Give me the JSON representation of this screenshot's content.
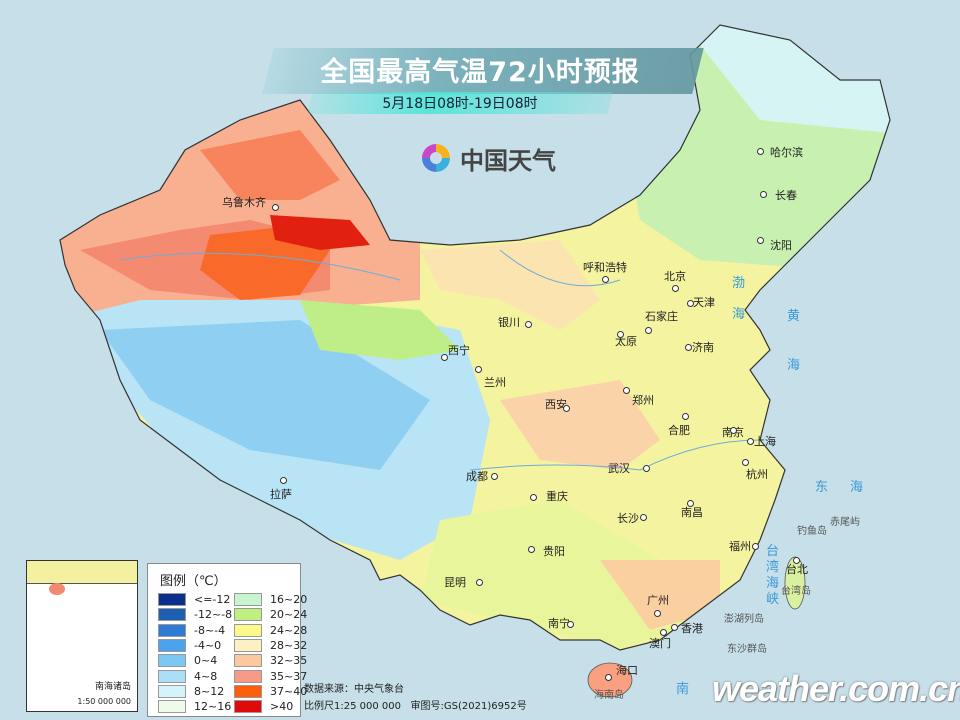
{
  "header": {
    "title": "全国最高气温72小时预报",
    "subtitle": "5月18日08时-19日08时",
    "logo_text": "中国天气"
  },
  "legend": {
    "title": "图例（℃）",
    "items": [
      {
        "label": "<=-12",
        "color": "#0b2f8a"
      },
      {
        "label": "-12~-8",
        "color": "#1d5fb0"
      },
      {
        "label": "-8~-4",
        "color": "#2e7ad4"
      },
      {
        "label": "-4~0",
        "color": "#4aa3ec"
      },
      {
        "label": "0~4",
        "color": "#7cc8f5"
      },
      {
        "label": "4~8",
        "color": "#aadff7"
      },
      {
        "label": "8~12",
        "color": "#d4f4fb"
      },
      {
        "label": "12~16",
        "color": "#eefbea"
      },
      {
        "label": "16~20",
        "color": "#c8f5cf"
      },
      {
        "label": "20~24",
        "color": "#bff07f"
      },
      {
        "label": "24~28",
        "color": "#fbf98a"
      },
      {
        "label": "28~32",
        "color": "#fdf0c2"
      },
      {
        "label": "32~35",
        "color": "#fcc8a0"
      },
      {
        "label": "35~37",
        "color": "#f89a88"
      },
      {
        "label": "37~40",
        "color": "#fb5f0c"
      },
      {
        "label": ">40",
        "color": "#e10a0a"
      }
    ]
  },
  "cities": [
    "乌鲁木齐",
    "哈尔滨",
    "长春",
    "沈阳",
    "呼和浩特",
    "北京",
    "天津",
    "石家庄",
    "银川",
    "太原",
    "济南",
    "西宁",
    "兰州",
    "西安",
    "郑州",
    "合肥",
    "南京",
    "上海",
    "杭州",
    "拉萨",
    "成都",
    "重庆",
    "武汉",
    "长沙",
    "南昌",
    "贵阳",
    "福州",
    "台北",
    "昆明",
    "南宁",
    "广州",
    "香港",
    "澳门",
    "海口"
  ],
  "seas": [
    "渤",
    "海",
    "黄",
    "海",
    "东",
    "海",
    "南",
    "台",
    "湾",
    "海",
    "峡"
  ],
  "islands": [
    "钓鱼岛",
    "赤尾屿",
    "台湾岛",
    "澎湖列岛",
    "东沙群岛",
    "海南岛"
  ],
  "inset": {
    "label": "南海诸岛",
    "scale": "1:50 000 000"
  },
  "footer": {
    "source": "数据来源：中央气象台",
    "scale": "比例尺1:25 000 000   审图号:GS(2021)6952号",
    "watermark": "weather.com.cn"
  }
}
